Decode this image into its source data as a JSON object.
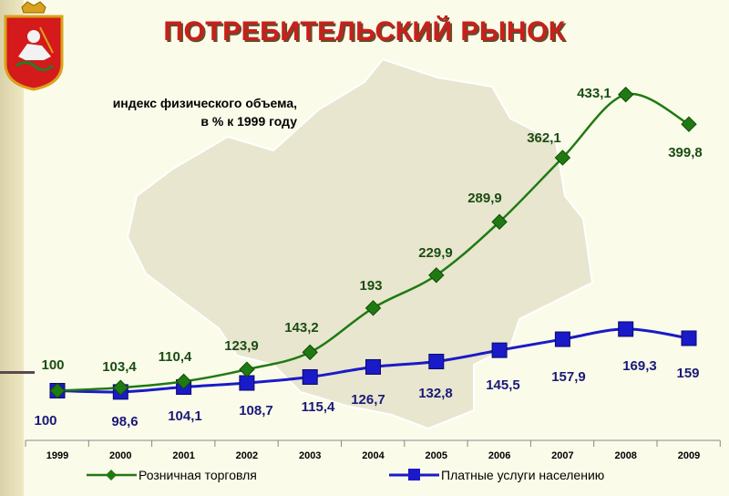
{
  "page": {
    "title": "ПОТРЕБИТЕЛЬСКИЙ РЫНОК",
    "note_line1": "индекс физического объема,",
    "note_line2": "в % к 1999 году"
  },
  "colors": {
    "title": "#c8201b",
    "retail": "#1f7a12",
    "services": "#1a1ac8",
    "map": "#e8e6cf"
  },
  "icons": {
    "emblem": "moscow-oblast-coat-of-arms-icon"
  },
  "chart_data": {
    "type": "line",
    "x": [
      "1999",
      "2000",
      "2001",
      "2002",
      "2003",
      "2004",
      "2005",
      "2006",
      "2007",
      "2008",
      "2009"
    ],
    "series": [
      {
        "name": "Розничная торговля",
        "values": [
          100,
          103.4,
          110.4,
          123.9,
          143.2,
          193,
          229.9,
          289.9,
          362.1,
          433.1,
          399.8
        ],
        "labels": [
          "100",
          "103,4",
          "110,4",
          "123,9",
          "143,2",
          "193",
          "229,9",
          "289,9",
          "362,1",
          "433,1",
          "399,8"
        ],
        "color": "#1f7a12",
        "marker": "diamond"
      },
      {
        "name": "Платные услуги населению",
        "values": [
          100,
          98.6,
          104.1,
          108.7,
          115.4,
          126.7,
          132.8,
          145.5,
          157.9,
          169.3,
          159
        ],
        "labels": [
          "100",
          "98,6",
          "104,1",
          "108,7",
          "115,4",
          "126,7",
          "132,8",
          "145,5",
          "157,9",
          "169,3",
          "159"
        ],
        "color": "#1a1ac8",
        "marker": "square"
      }
    ],
    "legend": "bottom",
    "grid": false
  }
}
